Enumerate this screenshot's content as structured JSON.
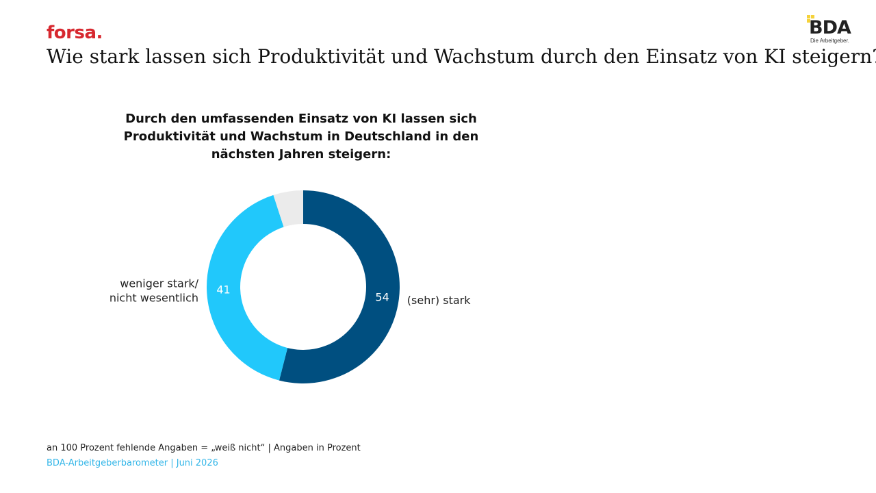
{
  "header": {
    "brand_left": "forsa.",
    "title": "Wie stark lassen sich Produktivität und Wachstum durch den Einsatz von KI steigern?",
    "logo_text": "BDA",
    "logo_tagline": "Die Arbeitgeber."
  },
  "chart_data": {
    "type": "pie",
    "donut": true,
    "title": "Durch den umfassenden Einsatz von KI lassen sich\nProduktivität und Wachstum in Deutschland in den\nnächsten Jahren steigern:",
    "slices": [
      {
        "value_label": "54",
        "value": 54,
        "label": "(sehr) stark",
        "color": "#004f80",
        "value_color": "#ffffff"
      },
      {
        "value_label": "41",
        "value": 41,
        "label": "weniger stark/\nnicht wesentlich",
        "color": "#21c8fb",
        "value_color": "#ffffff"
      },
      {
        "value": 5,
        "color": "#ebebeb"
      }
    ]
  },
  "footer": {
    "note": "an 100 Prozent fehlende Angaben = „weiß nicht“ | Angaben in Prozent",
    "source": "BDA-Arbeitgeberbarometer | Juni 2026"
  },
  "colors": {
    "brand_red": "#d7282f",
    "source_blue": "#33b6e8",
    "logo_yellow": "#f5d23a"
  }
}
